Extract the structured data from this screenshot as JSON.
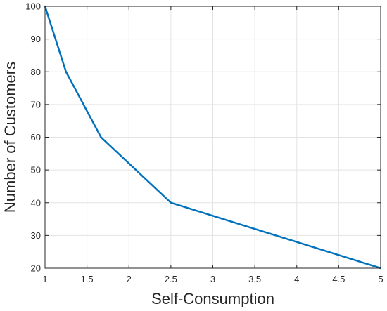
{
  "chart_data": {
    "type": "line",
    "title": "",
    "xlabel": "Self-Consumption",
    "ylabel": "Number of Customers",
    "xlim": [
      1,
      5
    ],
    "ylim": [
      20,
      100
    ],
    "xticks": [
      "1",
      "1.5",
      "2",
      "2.5",
      "3",
      "3.5",
      "4",
      "4.5",
      "5"
    ],
    "yticks": [
      "20",
      "30",
      "40",
      "50",
      "60",
      "70",
      "80",
      "90",
      "100"
    ],
    "grid": true,
    "series": [
      {
        "color": "#0072BD",
        "x": [
          1,
          1.25,
          1.667,
          2.5,
          5
        ],
        "y": [
          100,
          80,
          60,
          40,
          20
        ]
      }
    ]
  }
}
